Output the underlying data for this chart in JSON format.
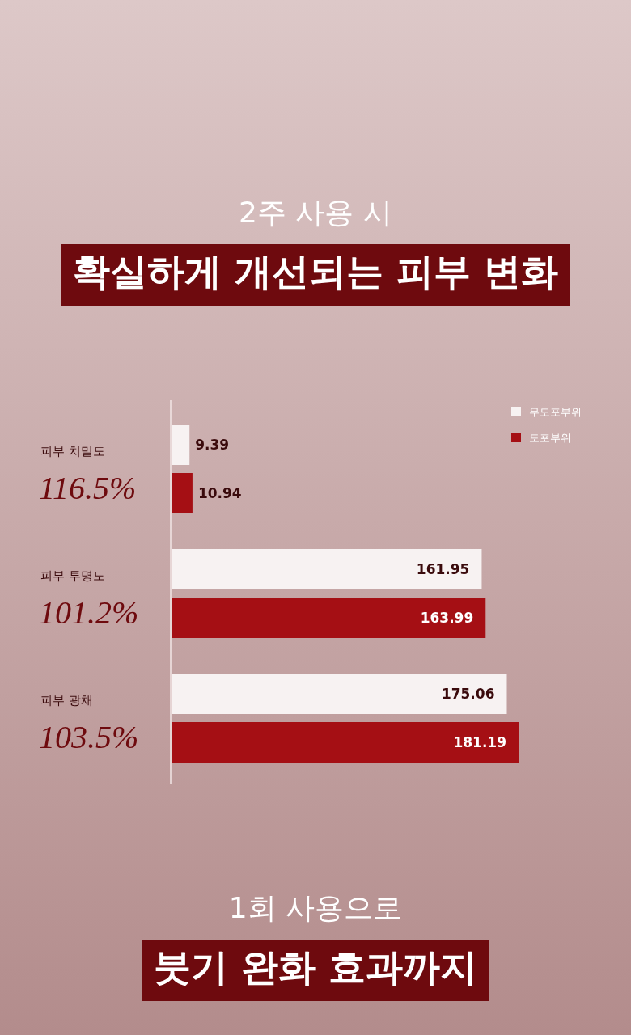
{
  "chart_data": {
    "type": "bar",
    "orientation": "horizontal",
    "subtitle": "2주 사용 시",
    "title": "확실하게 개선되는 피부 변화",
    "categories": [
      "피부 치밀도",
      "피부 투명도",
      "피부 광채"
    ],
    "data_labels": true,
    "legend": "top right",
    "series": [
      {
        "name": "무도포부위",
        "color": "#f7f2f2",
        "values": [
          9.39,
          161.95,
          175.06
        ]
      },
      {
        "name": "도포부위",
        "color": "#a50f14",
        "values": [
          10.94,
          163.99,
          181.19
        ]
      }
    ],
    "annotations": [
      "116.5%",
      "101.2%",
      "103.5%",
      "1회 사용으로",
      "붓기 완화 효과까지"
    ]
  }
}
